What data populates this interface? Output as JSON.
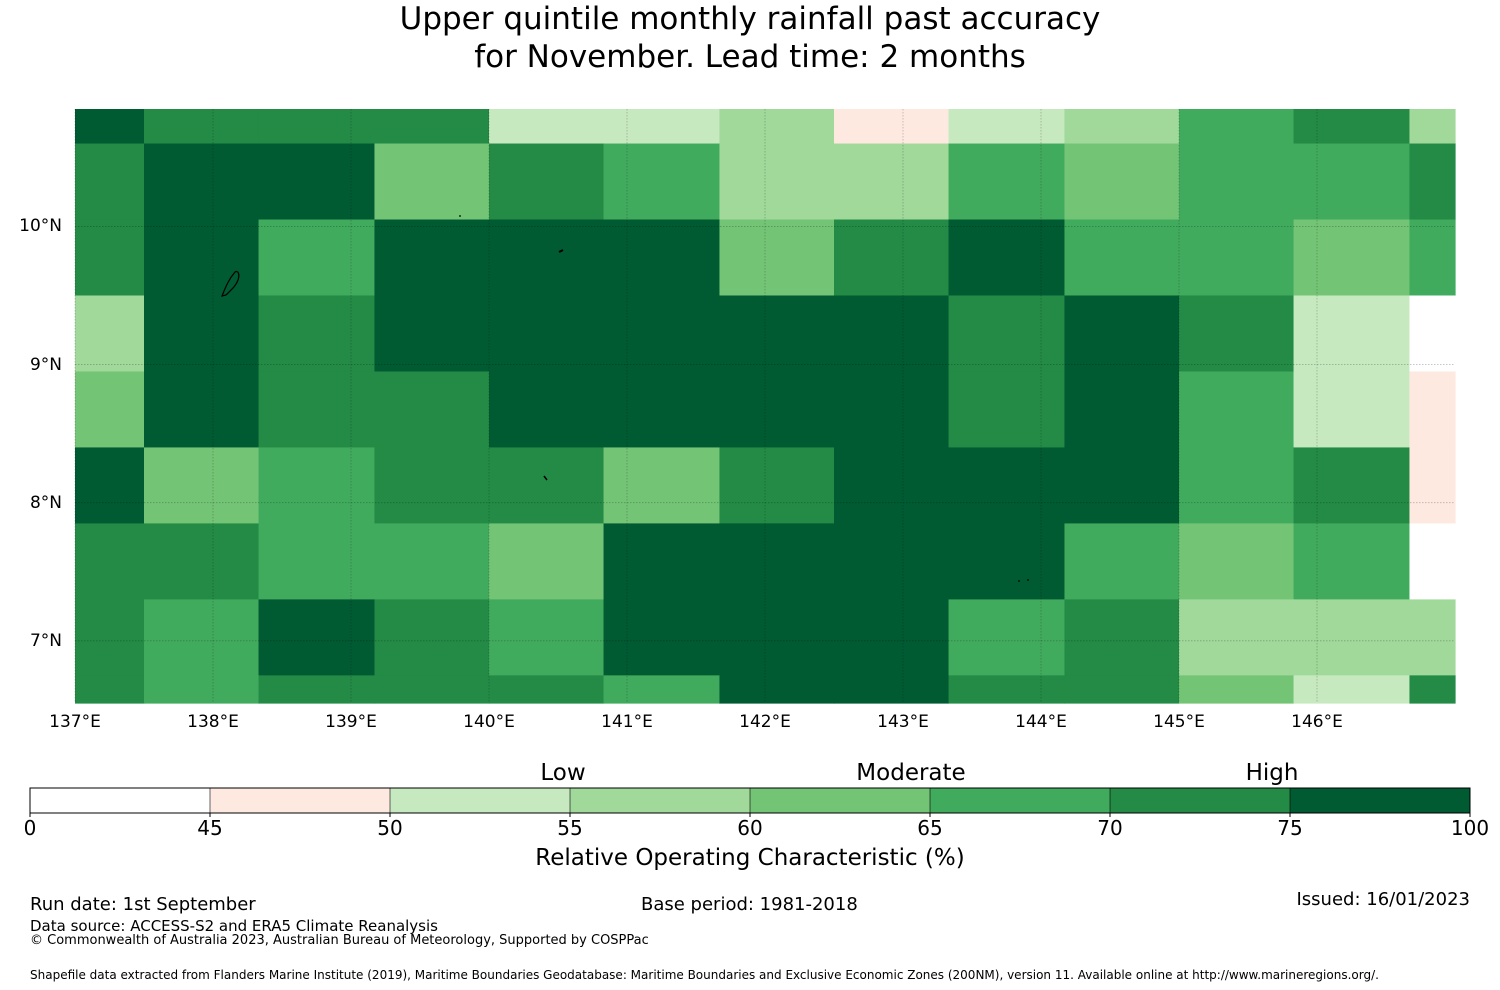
{
  "title_line1": "Upper quintile monthly rainfall past accuracy",
  "title_line2": "for November. Lead time: 2 months",
  "longitude_labels": [
    "137°E",
    "138°E",
    "139°E",
    "140°E",
    "141°E",
    "142°E",
    "143°E",
    "144°E",
    "145°E",
    "146°E"
  ],
  "latitude_labels": [
    "10°N",
    "9°N",
    "8°N",
    "7°N"
  ],
  "colorbar": {
    "title": "Relative Operating Characteristic (%)",
    "category_labels": [
      "Low",
      "Moderate",
      "High"
    ],
    "tick_labels": [
      "0",
      "45",
      "50",
      "55",
      "60",
      "65",
      "70",
      "75",
      "100"
    ],
    "colors": [
      "#ffffff",
      "#fde9e0",
      "#c7e9c0",
      "#a1d99b",
      "#74c476",
      "#41ab5d",
      "#238b45",
      "#005a32"
    ]
  },
  "chart_data": {
    "type": "heatmap",
    "title": "Upper quintile monthly rainfall past accuracy for November. Lead time: 2 months",
    "legend_title": "Relative Operating Characteristic (%)",
    "bins": [
      0,
      45,
      50,
      55,
      60,
      65,
      70,
      75,
      100
    ],
    "lon_range": [
      137.0,
      147.0
    ],
    "lat_range": [
      6.55,
      10.85
    ],
    "grid_lon_edges": [
      137.0,
      137.5,
      138.33,
      139.17,
      140.0,
      140.83,
      141.67,
      142.5,
      143.33,
      144.17,
      145.0,
      145.83,
      146.67,
      147.0
    ],
    "grid_lat_edges": [
      10.85,
      10.6,
      10.05,
      9.5,
      8.95,
      8.4,
      7.85,
      7.3,
      6.75,
      6.55
    ],
    "category_index_rows_north_to_south": [
      [
        7,
        6,
        6,
        6,
        2,
        2,
        3,
        1,
        2,
        3,
        5,
        6,
        3
      ],
      [
        6,
        7,
        7,
        4,
        6,
        5,
        3,
        3,
        5,
        4,
        5,
        5,
        6
      ],
      [
        6,
        7,
        5,
        7,
        7,
        7,
        4,
        6,
        7,
        5,
        5,
        4,
        5
      ],
      [
        3,
        7,
        6,
        7,
        7,
        7,
        7,
        7,
        6,
        7,
        6,
        2,
        0
      ],
      [
        4,
        7,
        6,
        6,
        7,
        7,
        7,
        7,
        6,
        7,
        5,
        2,
        1
      ],
      [
        7,
        4,
        5,
        6,
        6,
        4,
        6,
        7,
        7,
        7,
        5,
        6,
        1
      ],
      [
        6,
        6,
        5,
        5,
        4,
        7,
        7,
        7,
        7,
        5,
        4,
        5,
        0
      ],
      [
        6,
        5,
        7,
        6,
        5,
        7,
        7,
        7,
        5,
        6,
        3,
        3,
        3
      ],
      [
        6,
        5,
        6,
        6,
        6,
        5,
        7,
        7,
        6,
        6,
        4,
        2,
        6
      ]
    ]
  },
  "footer": {
    "run_date": "Run date: 1st September",
    "base_period": "Base period: 1981-2018",
    "issued": "Issued: 16/01/2023",
    "data_source": "Data source: ACCESS-S2 and ERA5 Climate Reanalysis",
    "copyright": "© Commonwealth of Australia 2023, Australian Bureau of Meteorology, Supported by COSPPac",
    "shapefile": "Shapefile data extracted from Flanders Marine Institute (2019), Maritime Boundaries Geodatabase: Maritime Boundaries and Exclusive Economic Zones (200NM), version 11. Available online at http://www.marineregions.org/."
  }
}
